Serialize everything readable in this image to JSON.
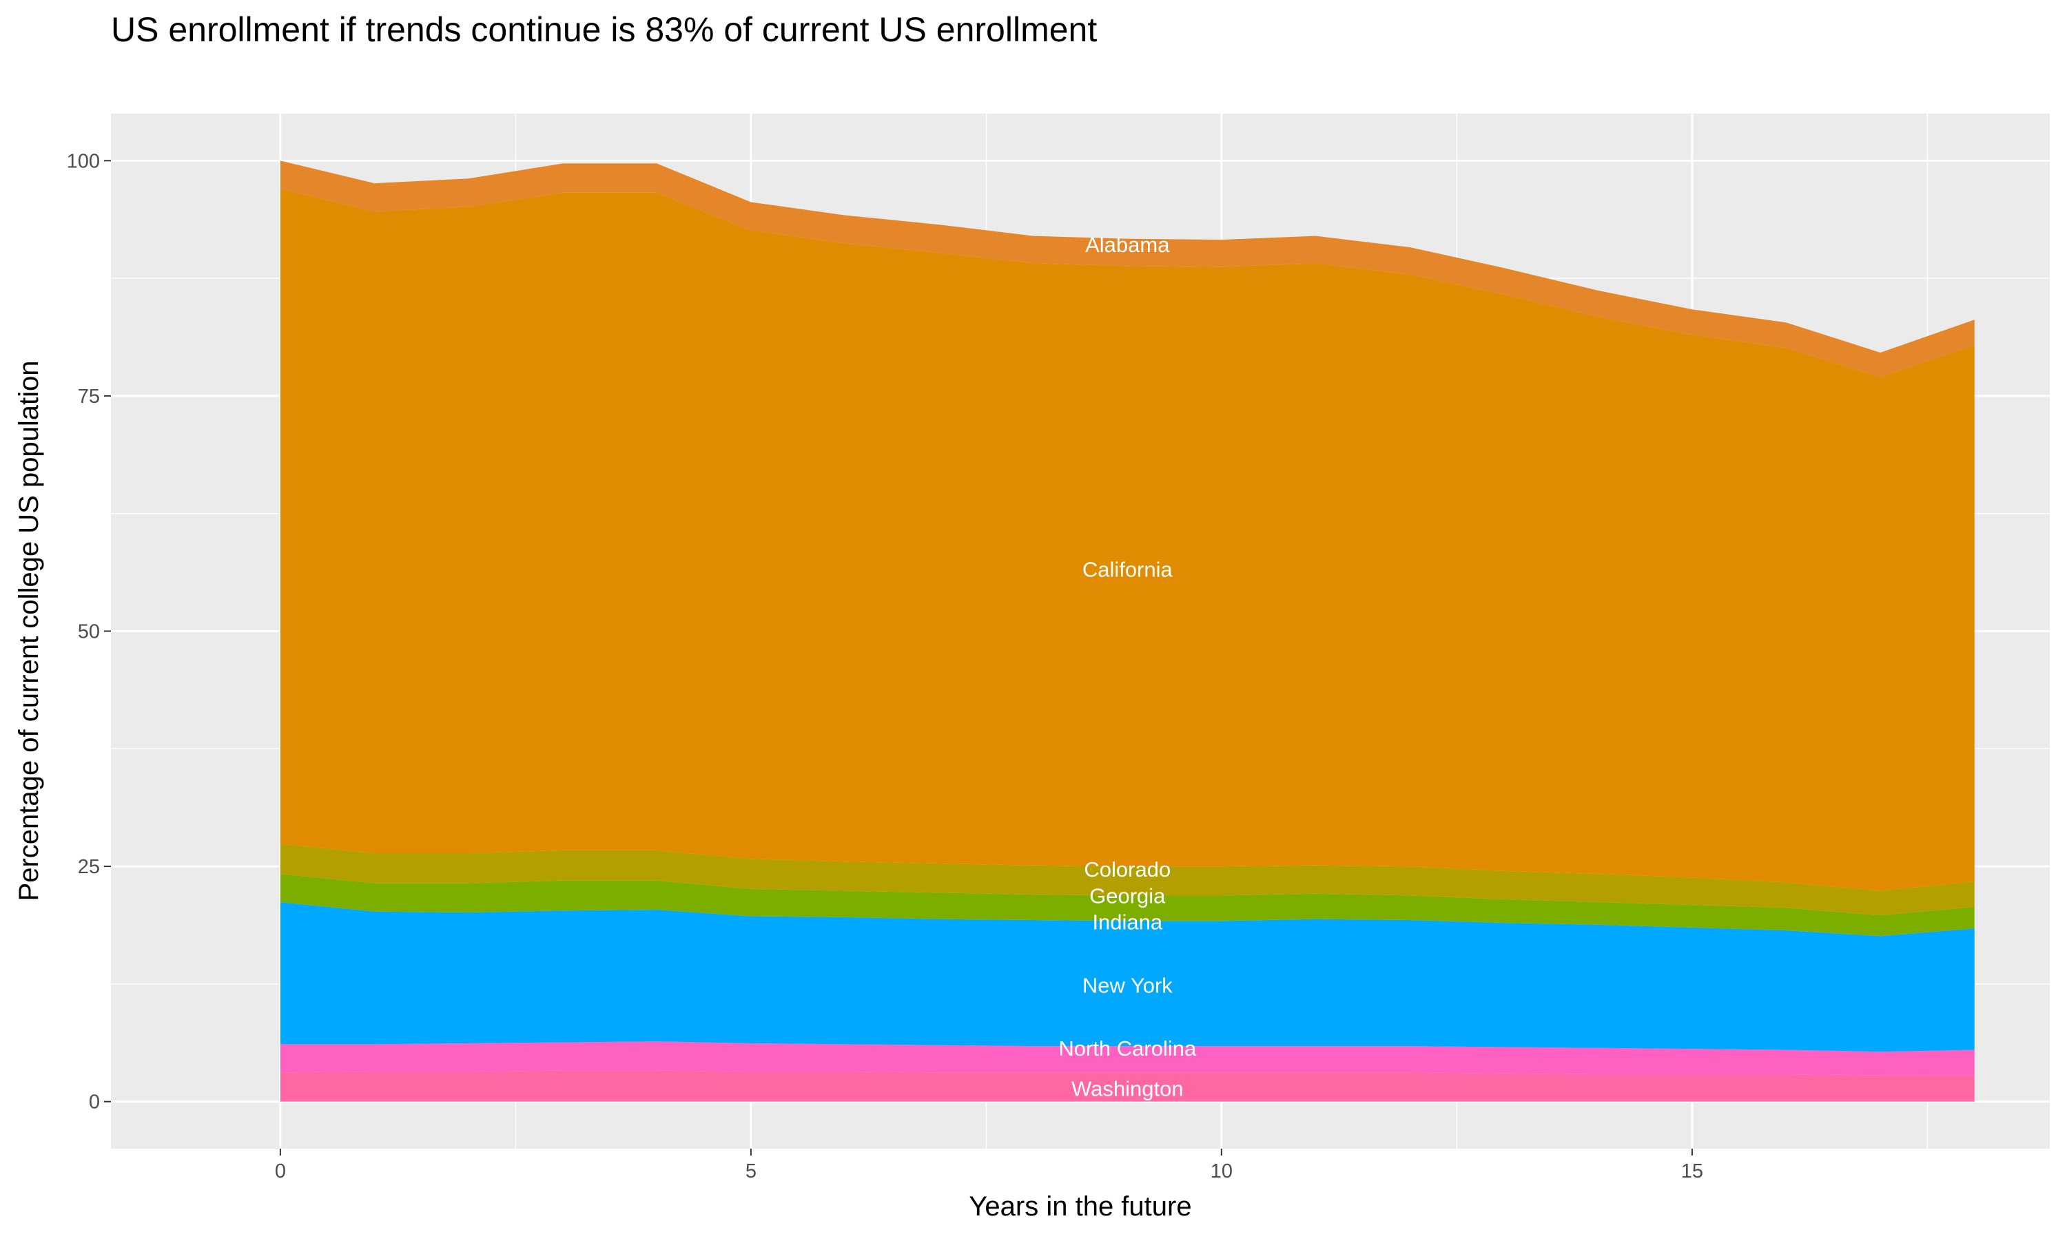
{
  "chart_data": {
    "type": "area",
    "stacked": true,
    "title": "US enrollment if trends continue is 83% of current US enrollment",
    "xlabel": "Years in the future",
    "ylabel": "Percentage of current college US population",
    "xlim": [
      -1.8,
      18.8
    ],
    "ylim": [
      -5,
      105
    ],
    "xticks": [
      0,
      5,
      10,
      15
    ],
    "yticks": [
      0,
      25,
      50,
      75,
      100
    ],
    "grid": true,
    "background": "#EBEBEB",
    "legend": "none",
    "x": [
      0,
      1,
      2,
      3,
      4,
      5,
      6,
      7,
      8,
      9,
      10,
      11,
      12,
      13,
      14,
      15,
      16,
      17,
      18
    ],
    "series": [
      {
        "name": "Washington",
        "color": "#FF67A4",
        "label_y": 1.4,
        "values": [
          3.1,
          3.2,
          3.2,
          3.3,
          3.3,
          3.2,
          3.2,
          3.1,
          3.1,
          3.1,
          3.1,
          3.1,
          3.1,
          3.0,
          2.9,
          2.9,
          2.9,
          2.8,
          2.8
        ]
      },
      {
        "name": "North Carolina",
        "color": "#FF61C3",
        "label_y": 5.7,
        "values": [
          3.0,
          2.9,
          3.0,
          3.0,
          3.1,
          3.0,
          2.9,
          2.9,
          2.8,
          2.8,
          2.8,
          2.8,
          2.8,
          2.8,
          2.8,
          2.7,
          2.6,
          2.5,
          2.7
        ]
      },
      {
        "name": "New York",
        "color": "#00A9FF",
        "label_y": 12.4,
        "values": [
          15.1,
          14.1,
          13.9,
          14.0,
          14.0,
          13.5,
          13.5,
          13.4,
          13.4,
          13.3,
          13.3,
          13.5,
          13.4,
          13.2,
          13.1,
          12.9,
          12.7,
          12.3,
          12.9
        ]
      },
      {
        "name": "Indiana",
        "color": "#00BF7D",
        "label_y": 19.1,
        "values": [
          0,
          0,
          0,
          0,
          0,
          0,
          0,
          0,
          0,
          0,
          0,
          0,
          0,
          0,
          0,
          0,
          0,
          0,
          0
        ]
      },
      {
        "name": "Georgia",
        "color": "#7CAE00",
        "label_y": 21.9,
        "values": [
          3.0,
          3.0,
          3.1,
          3.2,
          3.1,
          2.9,
          2.8,
          2.8,
          2.7,
          2.7,
          2.7,
          2.7,
          2.6,
          2.5,
          2.4,
          2.4,
          2.4,
          2.2,
          2.3
        ]
      },
      {
        "name": "Colorado",
        "color": "#B39F00",
        "label_y": 24.7,
        "values": [
          3.2,
          3.2,
          3.2,
          3.2,
          3.2,
          3.2,
          3.1,
          3.1,
          3.1,
          3.1,
          3.1,
          3.0,
          3.1,
          3.0,
          3.0,
          2.9,
          2.7,
          2.6,
          2.7
        ]
      },
      {
        "name": "California",
        "color": "#E08B00",
        "label_y": 56.6,
        "values": [
          69.6,
          68.2,
          68.7,
          69.9,
          69.9,
          66.8,
          65.7,
          64.9,
          64.0,
          63.8,
          63.7,
          64.0,
          62.9,
          61.3,
          59.2,
          57.7,
          56.8,
          54.6,
          57.0
        ]
      },
      {
        "name": "Alabama",
        "color": "#E6862A",
        "label_y": 91.1,
        "values": [
          3.0,
          3.0,
          3.0,
          3.1,
          3.1,
          3.0,
          3.0,
          3.0,
          2.9,
          2.9,
          2.9,
          2.9,
          2.9,
          2.8,
          2.8,
          2.7,
          2.7,
          2.6,
          2.7
        ]
      }
    ],
    "label_x": 9
  }
}
